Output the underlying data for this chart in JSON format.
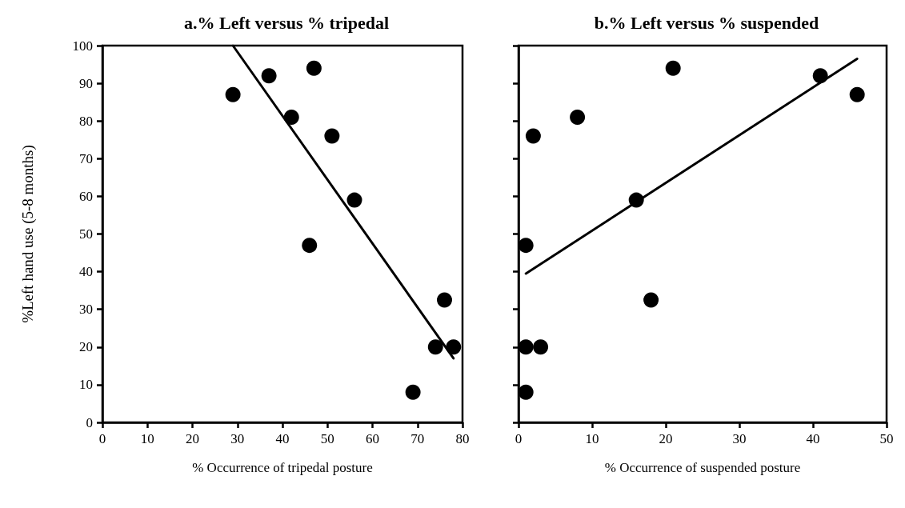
{
  "chart_data": [
    {
      "type": "scatter",
      "title": "a.% Left versus % tripedal",
      "xlabel": "% Occurrence of tripedal posture",
      "ylabel": "%Left hand use (5-8 months)",
      "xlim": [
        0,
        80
      ],
      "xticks": [
        0,
        10,
        20,
        30,
        40,
        50,
        60,
        70,
        80
      ],
      "ylim": [
        0,
        100
      ],
      "yticks": [
        0,
        10,
        20,
        30,
        40,
        50,
        60,
        70,
        80,
        90,
        100
      ],
      "marker": "circle",
      "series": [
        {
          "color": "#000000",
          "x": [
            29,
            37,
            47,
            42,
            51,
            56,
            46,
            76,
            74,
            78,
            69
          ],
          "values": [
            87,
            92,
            94,
            81,
            76,
            59,
            47,
            32.5,
            20,
            20,
            8
          ]
        },
        {
          "type": "line",
          "color": "#000000",
          "line_style": "solid",
          "marker": "none",
          "x": [
            29,
            78
          ],
          "values": [
            100,
            17
          ]
        }
      ]
    },
    {
      "type": "scatter",
      "title": "b.% Left versus % suspended",
      "xlabel": "% Occurrence of suspended posture",
      "xlim": [
        0,
        50
      ],
      "xticks": [
        0,
        10,
        20,
        30,
        40,
        50
      ],
      "ylim": [
        0,
        100
      ],
      "yticks": [
        0,
        10,
        20,
        30,
        40,
        50,
        60,
        70,
        80,
        90,
        100
      ],
      "tick_labels": "x",
      "marker": "circle",
      "series": [
        {
          "color": "#000000",
          "x": [
            21,
            41,
            46,
            8,
            2,
            16,
            1,
            18,
            1,
            3,
            1
          ],
          "values": [
            94,
            92,
            87,
            81,
            76,
            59,
            47,
            32.5,
            20,
            20,
            8
          ]
        },
        {
          "type": "line",
          "color": "#000000",
          "line_style": "solid",
          "marker": "none",
          "x": [
            1,
            46
          ],
          "values": [
            39.5,
            96.5
          ]
        }
      ]
    }
  ]
}
